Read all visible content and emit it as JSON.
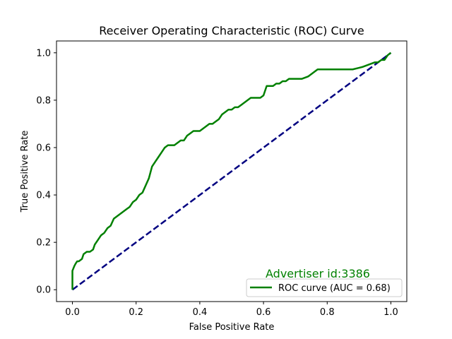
{
  "chart_data": {
    "type": "line",
    "title": "Receiver Operating Characteristic (ROC) Curve",
    "xlabel": "False Positive Rate",
    "ylabel": "True Positive Rate",
    "xlim": [
      -0.05,
      1.05
    ],
    "ylim": [
      -0.05,
      1.05
    ],
    "xticks": [
      "0.0",
      "0.2",
      "0.4",
      "0.6",
      "0.8",
      "1.0"
    ],
    "yticks": [
      "0.0",
      "0.2",
      "0.4",
      "0.6",
      "0.8",
      "1.0"
    ],
    "grid": false,
    "legend_position": "lower-right",
    "annotation": "Advertiser id:3386",
    "annotation_color": "#008000",
    "series": [
      {
        "name": "ROC curve (AUC = 0.68)",
        "color": "#008000",
        "style": "solid",
        "x": [
          0.0,
          0.0,
          0.003,
          0.006,
          0.01,
          0.015,
          0.02,
          0.03,
          0.035,
          0.045,
          0.055,
          0.065,
          0.07,
          0.08,
          0.09,
          0.1,
          0.11,
          0.12,
          0.13,
          0.14,
          0.15,
          0.16,
          0.17,
          0.18,
          0.19,
          0.2,
          0.21,
          0.22,
          0.23,
          0.24,
          0.25,
          0.26,
          0.27,
          0.28,
          0.29,
          0.3,
          0.31,
          0.32,
          0.33,
          0.34,
          0.35,
          0.36,
          0.37,
          0.38,
          0.39,
          0.4,
          0.41,
          0.42,
          0.43,
          0.44,
          0.45,
          0.46,
          0.47,
          0.48,
          0.49,
          0.5,
          0.51,
          0.52,
          0.53,
          0.54,
          0.55,
          0.56,
          0.57,
          0.58,
          0.59,
          0.6,
          0.61,
          0.62,
          0.63,
          0.64,
          0.65,
          0.66,
          0.67,
          0.68,
          0.69,
          0.7,
          0.72,
          0.74,
          0.76,
          0.77,
          0.8,
          0.84,
          0.88,
          0.91,
          0.93,
          0.95,
          0.96,
          0.97,
          0.98,
          0.985,
          0.99,
          1.0
        ],
        "y": [
          0.0,
          0.08,
          0.09,
          0.1,
          0.11,
          0.12,
          0.12,
          0.13,
          0.15,
          0.16,
          0.16,
          0.17,
          0.19,
          0.21,
          0.23,
          0.24,
          0.26,
          0.27,
          0.3,
          0.31,
          0.32,
          0.33,
          0.34,
          0.35,
          0.37,
          0.38,
          0.4,
          0.41,
          0.44,
          0.47,
          0.52,
          0.54,
          0.56,
          0.58,
          0.6,
          0.61,
          0.61,
          0.61,
          0.62,
          0.63,
          0.63,
          0.65,
          0.66,
          0.67,
          0.67,
          0.67,
          0.68,
          0.69,
          0.7,
          0.7,
          0.71,
          0.72,
          0.74,
          0.75,
          0.76,
          0.76,
          0.77,
          0.77,
          0.78,
          0.79,
          0.8,
          0.81,
          0.81,
          0.81,
          0.81,
          0.82,
          0.86,
          0.86,
          0.86,
          0.87,
          0.87,
          0.88,
          0.88,
          0.89,
          0.89,
          0.89,
          0.89,
          0.9,
          0.92,
          0.93,
          0.93,
          0.93,
          0.93,
          0.94,
          0.95,
          0.96,
          0.96,
          0.97,
          0.97,
          0.98,
          0.99,
          1.0
        ]
      },
      {
        "color": "#000080",
        "style": "dashed",
        "x": [
          0.0,
          1.0
        ],
        "y": [
          0.0,
          1.0
        ]
      }
    ]
  }
}
